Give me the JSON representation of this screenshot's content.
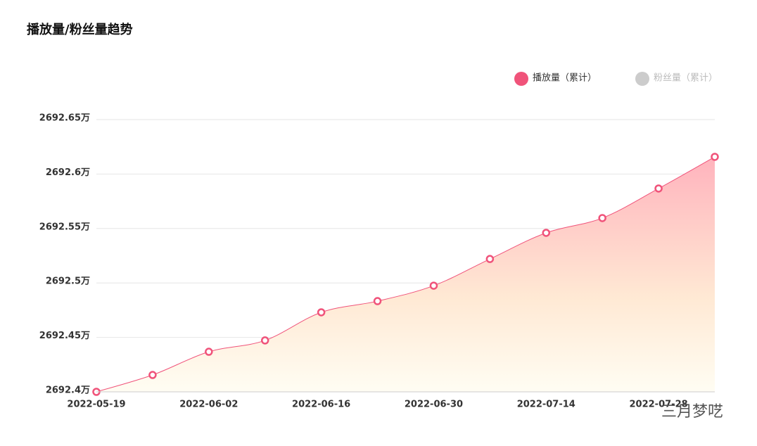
{
  "chart_data": {
    "type": "line",
    "title": "播放量/粉丝量趋势",
    "categories": [
      "2022-05-19",
      null,
      "2022-06-02",
      null,
      "2022-06-16",
      null,
      "2022-06-30",
      null,
      "2022-07-14",
      null,
      "2022-07-28",
      null
    ],
    "series": [
      {
        "name": "播放量（累计）",
        "color": "#f0537a",
        "values": [
          2692.4,
          2692.4155,
          2692.4368,
          2692.4472,
          2692.473,
          2692.4833,
          2692.4975,
          2692.522,
          2692.546,
          2692.5596,
          2692.5867,
          2692.6158
        ]
      }
    ],
    "legend_extra": [
      {
        "name": "粉丝量（累计）",
        "color": "#cccccc"
      }
    ],
    "ylim": [
      2692.4,
      2692.65
    ],
    "yticks": [
      {
        "value": 2692.4,
        "label": "2692.4万"
      },
      {
        "value": 2692.45,
        "label": "2692.45万"
      },
      {
        "value": 2692.5,
        "label": "2692.5万"
      },
      {
        "value": 2692.55,
        "label": "2692.55万"
      },
      {
        "value": 2692.6,
        "label": "2692.6万"
      },
      {
        "value": 2692.65,
        "label": "2692.65万"
      }
    ],
    "grid": true,
    "watermark": "三月梦呓"
  }
}
